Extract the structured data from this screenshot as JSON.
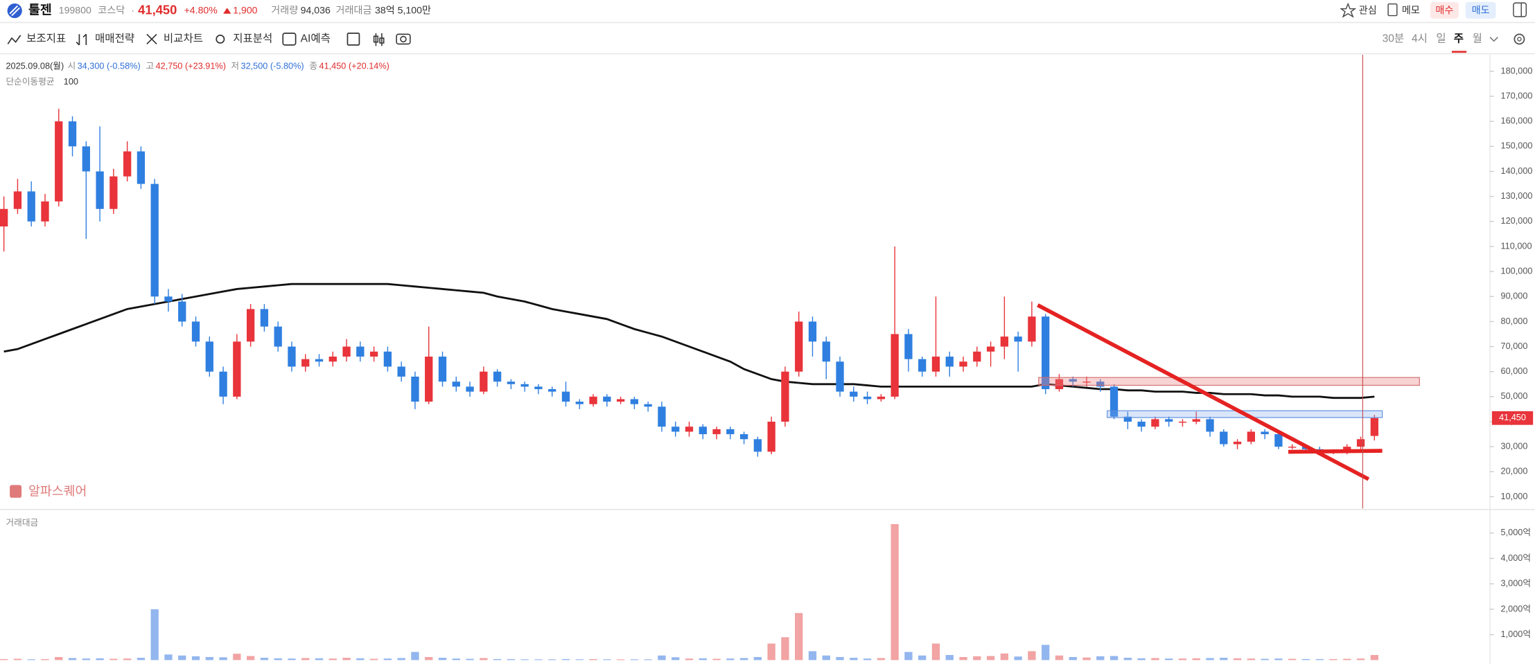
{
  "header": {
    "name": "툴젠",
    "code": "199800",
    "market": "코스닥",
    "price": "41,450",
    "change_pct": "+4.80%",
    "change": "1,900",
    "volume_label": "거래량",
    "volume": "94,036",
    "value_label": "거래대금",
    "value": "38억 5,100만",
    "watch": "관심",
    "memo": "메모",
    "buy": "매수",
    "sell": "매도"
  },
  "toolbar": [
    "보조지표",
    "매매전략",
    "비교차트",
    "지표분석",
    "AI예측"
  ],
  "timeframes": [
    "30분",
    "4시",
    "일",
    "주",
    "월"
  ],
  "info": {
    "date": "2025.09.08(월)",
    "open_label": "시",
    "open": "34,300 (-0.58%)",
    "high_label": "고",
    "high": "42,750 (+23.91%)",
    "low_label": "저",
    "low": "32,500 (-5.80%)",
    "close_label": "종",
    "close": "41,450 (+20.14%)"
  },
  "watermark": "알파스퀘어",
  "chart_data": {
    "type": "candlestick",
    "up_color": "#e8343a",
    "down_color": "#2f7fe0",
    "open": [
      118000,
      125000,
      132000,
      120000,
      128000,
      160000,
      150000,
      140000,
      125000,
      138000,
      148000,
      135000,
      90000,
      88000,
      80000,
      72000,
      60000,
      50000,
      72000,
      85000,
      78000,
      70000,
      62000,
      65000,
      64000,
      66000,
      70000,
      66000,
      68000,
      62000,
      58000,
      48000,
      66000,
      56000,
      54000,
      52000,
      60000,
      56000,
      55000,
      54000,
      53000,
      52000,
      48000,
      47000,
      50000,
      48000,
      49000,
      47000,
      46000,
      38000,
      36000,
      38000,
      35000,
      37000,
      35000,
      33000,
      28000,
      40000,
      60000,
      80000,
      72000,
      64000,
      52000,
      50000,
      49000,
      50000,
      75000,
      65000,
      60000,
      66000,
      62000,
      64000,
      68000,
      70000,
      74000,
      72000,
      82000,
      53000,
      57000,
      56000,
      56000,
      54000,
      42000,
      40000,
      38000,
      41000,
      40000,
      40000,
      41000,
      36000,
      31000,
      32000,
      36000,
      35000,
      30000,
      30000,
      29000,
      28000,
      28000,
      30000,
      34300
    ],
    "high": [
      130000,
      137000,
      136000,
      131000,
      165000,
      162000,
      152000,
      158000,
      141000,
      152000,
      150000,
      137000,
      93000,
      91000,
      82000,
      74000,
      62000,
      75000,
      87000,
      87000,
      80000,
      72000,
      67000,
      67000,
      68000,
      73000,
      72000,
      70000,
      70000,
      64000,
      60000,
      78000,
      68000,
      58000,
      56000,
      62000,
      61000,
      57000,
      56000,
      55000,
      54000,
      56000,
      49000,
      51000,
      51000,
      50000,
      50000,
      48000,
      48000,
      40000,
      40000,
      39000,
      38000,
      38000,
      36000,
      34000,
      42000,
      62000,
      84000,
      82000,
      74000,
      66000,
      54000,
      52000,
      51000,
      110000,
      77000,
      66000,
      90000,
      68000,
      66000,
      70000,
      72000,
      90000,
      76000,
      88000,
      83000,
      59000,
      58000,
      58000,
      57000,
      55000,
      44000,
      41000,
      42000,
      42000,
      41000,
      44000,
      42000,
      37000,
      33000,
      37000,
      37000,
      36000,
      31000,
      31000,
      30000,
      29000,
      31000,
      34000,
      42750
    ],
    "low": [
      108000,
      123000,
      118000,
      118000,
      126000,
      146000,
      113000,
      120000,
      123000,
      136000,
      133000,
      87000,
      84000,
      78000,
      70000,
      58000,
      47000,
      49000,
      70000,
      76000,
      68000,
      60000,
      60000,
      62000,
      62000,
      64000,
      64000,
      64000,
      60000,
      56000,
      45000,
      47000,
      54000,
      52000,
      50000,
      51000,
      54000,
      53000,
      52000,
      51000,
      50000,
      46000,
      45000,
      46000,
      46000,
      47000,
      45000,
      44000,
      36000,
      34000,
      34000,
      33000,
      33000,
      33000,
      31000,
      26000,
      27000,
      38000,
      58000,
      66000,
      57000,
      50000,
      48000,
      47000,
      48000,
      49000,
      60000,
      58000,
      58000,
      58000,
      60000,
      62000,
      62000,
      65000,
      60000,
      70000,
      51000,
      52000,
      54000,
      54000,
      52000,
      41000,
      37000,
      36000,
      37000,
      38000,
      38000,
      39000,
      34000,
      30000,
      29000,
      31000,
      33000,
      29000,
      29000,
      28000,
      27000,
      27000,
      27000,
      29000,
      32500
    ],
    "close": [
      125000,
      132000,
      120000,
      128000,
      160000,
      150000,
      140000,
      125000,
      138000,
      148000,
      135000,
      90000,
      88000,
      80000,
      72000,
      60000,
      50000,
      72000,
      85000,
      78000,
      70000,
      62000,
      65000,
      64000,
      66000,
      70000,
      66000,
      68000,
      62000,
      58000,
      48000,
      66000,
      56000,
      54000,
      52000,
      60000,
      56000,
      55000,
      54000,
      53000,
      52000,
      48000,
      47000,
      50000,
      48000,
      49000,
      47000,
      46000,
      38000,
      36000,
      38000,
      35000,
      37000,
      35000,
      33000,
      28000,
      40000,
      60000,
      80000,
      72000,
      64000,
      52000,
      50000,
      49000,
      50000,
      75000,
      65000,
      60000,
      66000,
      62000,
      64000,
      68000,
      70000,
      74000,
      72000,
      82000,
      53000,
      57000,
      56000,
      56000,
      54000,
      42000,
      40000,
      38000,
      41000,
      40000,
      40000,
      41000,
      36000,
      31000,
      32000,
      36000,
      35000,
      30000,
      30000,
      29000,
      28000,
      28000,
      30000,
      33000,
      41450
    ],
    "ma": {
      "name": "단순이동평균",
      "period": 100,
      "color": "#111111",
      "values": [
        68000,
        69000,
        71000,
        73000,
        75000,
        77000,
        79000,
        81000,
        83000,
        85000,
        86000,
        87000,
        88000,
        89000,
        90000,
        91000,
        92000,
        93000,
        93500,
        94000,
        94500,
        95000,
        95000,
        95000,
        95000,
        95000,
        95000,
        95000,
        95000,
        94500,
        94000,
        93500,
        93000,
        92500,
        92000,
        91500,
        90000,
        89000,
        88000,
        86500,
        85000,
        84000,
        83000,
        82000,
        81000,
        79000,
        77000,
        75500,
        74000,
        72000,
        70000,
        68000,
        66000,
        64000,
        61000,
        59000,
        57000,
        56000,
        55500,
        55000,
        55000,
        55000,
        55000,
        54500,
        54000,
        54000,
        54000,
        54000,
        54000,
        54000,
        54000,
        54000,
        54000,
        54000,
        54000,
        54000,
        55000,
        54500,
        54000,
        53500,
        53000,
        53000,
        52500,
        52500,
        52000,
        52000,
        52000,
        51500,
        51500,
        51000,
        51000,
        51000,
        50500,
        50500,
        50000,
        50000,
        50000,
        49500,
        49500,
        49500,
        50000
      ]
    },
    "ylim": [
      5300,
      186600
    ],
    "yticks": [
      {
        "value": 10000,
        "label": "10,000"
      },
      {
        "value": 20000,
        "label": "20,000"
      },
      {
        "value": 30000,
        "label": "30,000"
      },
      {
        "value": 40000,
        "label": "40,000"
      },
      {
        "value": 50000,
        "label": "50,000"
      },
      {
        "value": 60000,
        "label": "60,000"
      },
      {
        "value": 70000,
        "label": "70,000"
      },
      {
        "value": 80000,
        "label": "80,000"
      },
      {
        "value": 90000,
        "label": "90,000"
      },
      {
        "value": 100000,
        "label": "100,000"
      },
      {
        "value": 110000,
        "label": "110,000"
      },
      {
        "value": 120000,
        "label": "120,000"
      },
      {
        "value": 130000,
        "label": "130,000"
      },
      {
        "value": 140000,
        "label": "140,000"
      },
      {
        "value": 150000,
        "label": "150,000"
      },
      {
        "value": 160000,
        "label": "160,000"
      },
      {
        "value": 170000,
        "label": "170,000"
      },
      {
        "value": 180000,
        "label": "180,000"
      }
    ],
    "last_label": "41,450",
    "volume": {
      "title": "거래대금",
      "up_color": "#f2a3a3",
      "down_color": "#93b6ee",
      "values": [
        40,
        50,
        30,
        40,
        120,
        80,
        60,
        70,
        50,
        60,
        90,
        2000,
        220,
        180,
        150,
        120,
        110,
        250,
        160,
        90,
        70,
        60,
        80,
        70,
        60,
        90,
        70,
        50,
        60,
        80,
        320,
        120,
        90,
        60,
        50,
        80,
        40,
        40,
        30,
        30,
        30,
        40,
        30,
        40,
        30,
        30,
        30,
        30,
        180,
        110,
        60,
        70,
        50,
        60,
        80,
        120,
        650,
        900,
        1850,
        350,
        180,
        120,
        90,
        60,
        80,
        5350,
        320,
        180,
        650,
        200,
        120,
        150,
        160,
        260,
        140,
        350,
        600,
        180,
        120,
        100,
        150,
        160,
        90,
        70,
        80,
        60,
        60,
        70,
        80,
        90,
        70,
        60,
        50,
        60,
        50,
        40,
        40,
        40,
        50,
        60,
        200
      ],
      "ylim": [
        0,
        5770
      ],
      "yticks": [
        {
          "value": 1000,
          "label": "1,000억"
        },
        {
          "value": 2000,
          "label": "2,000억"
        },
        {
          "value": 3000,
          "label": "3,000억"
        },
        {
          "value": 4000,
          "label": "4,000억"
        },
        {
          "value": 5000,
          "label": "5,000억"
        }
      ]
    }
  }
}
